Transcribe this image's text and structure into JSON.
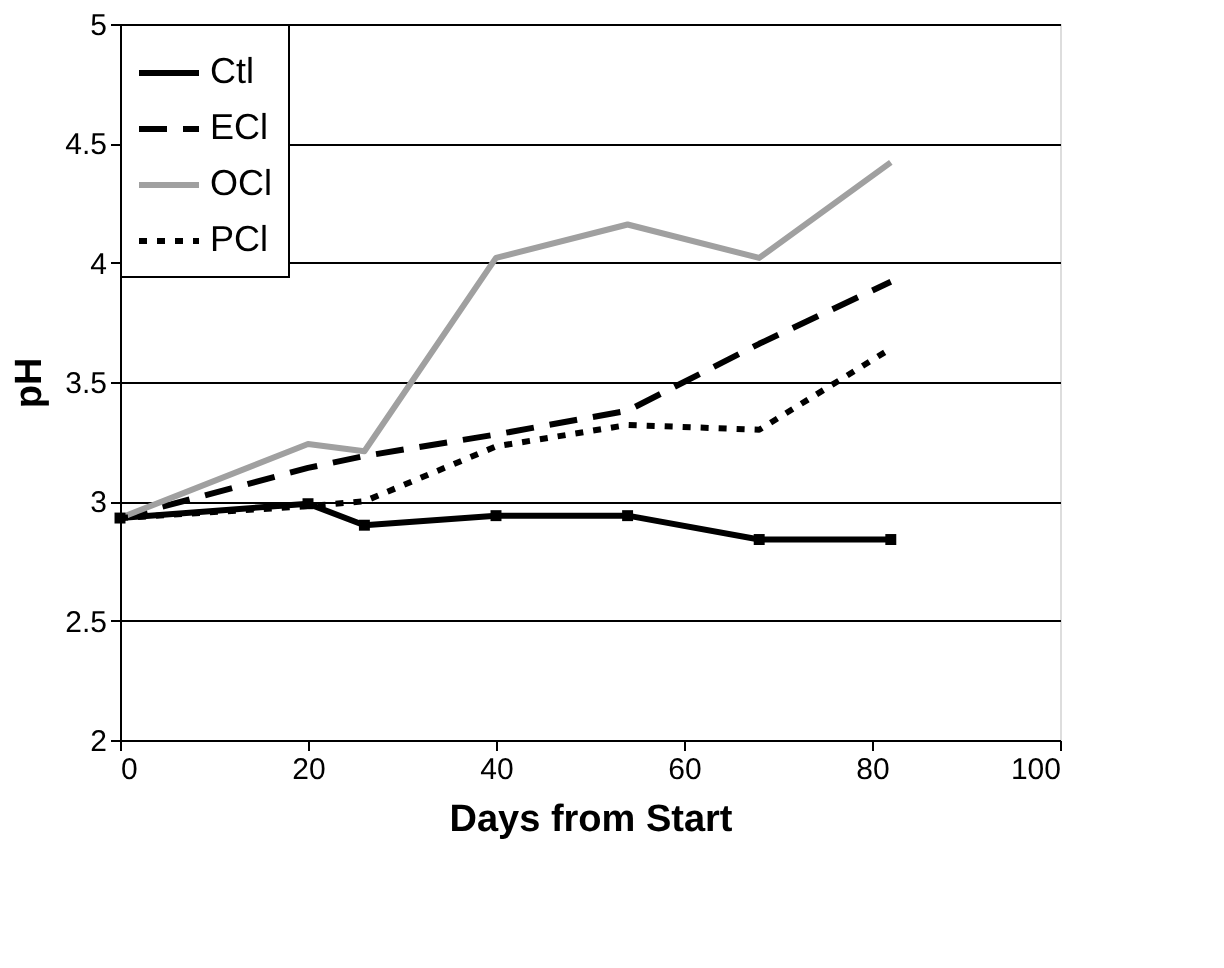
{
  "chart_data": {
    "type": "line",
    "xlabel": "Days from Start",
    "ylabel": "pH",
    "xlim": [
      0,
      100
    ],
    "xticks": [
      0,
      20,
      40,
      60,
      80,
      100
    ],
    "ylim": [
      2,
      5
    ],
    "yticks": [
      2,
      2.5,
      3,
      3.5,
      4,
      4.5,
      5
    ],
    "grid": "y",
    "legend": "top left",
    "x": [
      0,
      20,
      26,
      40,
      54,
      68,
      82
    ],
    "series": [
      {
        "name": "Ctl",
        "color": "#000000",
        "line_style": "solid",
        "marker": "square",
        "values": [
          2.93,
          2.99,
          2.9,
          2.94,
          2.94,
          2.84,
          2.84
        ]
      },
      {
        "name": "ECl",
        "color": "#000000",
        "line_style": "dashed",
        "marker": "none",
        "values": [
          2.93,
          3.14,
          3.19,
          3.28,
          3.38,
          3.66,
          3.92
        ]
      },
      {
        "name": "OCl",
        "color": "#a0a0a0",
        "line_style": "solid",
        "marker": "none",
        "values": [
          2.93,
          3.24,
          3.21,
          4.02,
          4.16,
          4.02,
          4.42
        ]
      },
      {
        "name": "PCl",
        "color": "#000000",
        "line_style": "dotted",
        "marker": "none",
        "values": [
          2.93,
          2.98,
          3.0,
          3.23,
          3.32,
          3.3,
          3.64
        ]
      }
    ]
  }
}
